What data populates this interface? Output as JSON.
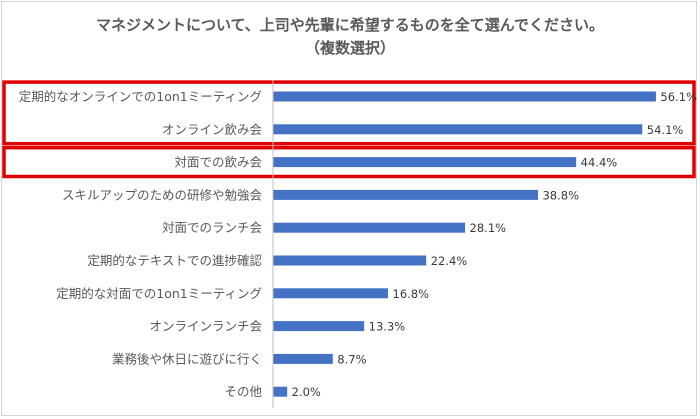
{
  "chart_data": {
    "type": "bar",
    "orientation": "horizontal",
    "title": "マネジメントについて、上司や先輩に希望するものを全て選んでください。",
    "subtitle": "（複数選択）",
    "categories": [
      "定期的なオンラインでの1on1ミーティング",
      "オンライン飲み会",
      "対面での飲み会",
      "スキルアップのための研修や勉強会",
      "対面でのランチ会",
      "定期的なテキストでの進捗確認",
      "定期的な対面での1on1ミーティング",
      "オンラインランチ会",
      "業務後や休日に遊びに行く",
      "その他"
    ],
    "values": [
      56.1,
      54.1,
      44.4,
      38.8,
      28.1,
      22.4,
      16.8,
      13.3,
      8.7,
      2.0
    ],
    "value_labels": [
      "56.1%",
      "54.1%",
      "44.4%",
      "38.8%",
      "28.1%",
      "22.4%",
      "16.8%",
      "13.3%",
      "8.7%",
      "2.0%"
    ],
    "unit": "%",
    "xlim": [
      0,
      60
    ],
    "grid": false,
    "legend": "none",
    "bar_color": "#4472c4",
    "highlight_color": "#e00000",
    "highlight_groups": [
      [
        0,
        1
      ],
      [
        2
      ]
    ]
  }
}
